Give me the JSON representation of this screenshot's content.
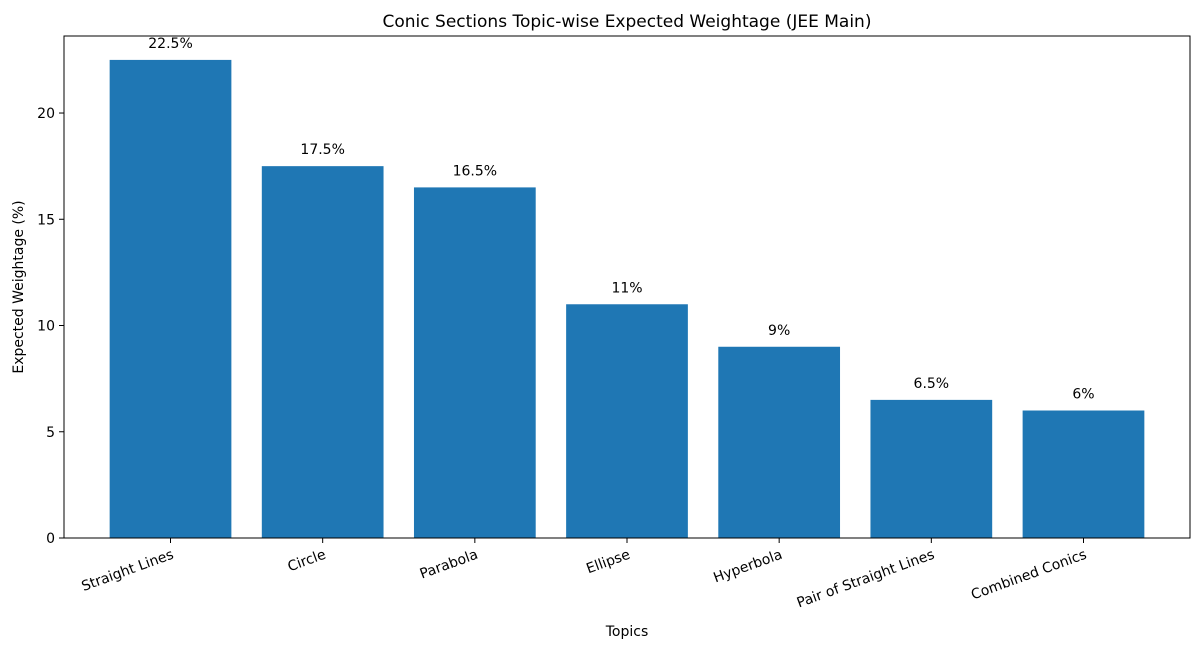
{
  "chart_data": {
    "type": "bar",
    "title": "Conic Sections Topic-wise Expected Weightage (JEE Main)",
    "xlabel": "Topics",
    "ylabel": "Expected Weightage (%)",
    "categories": [
      "Straight Lines",
      "Circle",
      "Parabola",
      "Ellipse",
      "Hyperbola",
      "Pair of Straight Lines",
      "Combined Conics"
    ],
    "values": [
      22.5,
      17.5,
      16.5,
      11,
      9,
      6.5,
      6
    ],
    "data_labels": [
      "22.5%",
      "17.5%",
      "16.5%",
      "11%",
      "9%",
      "6.5%",
      "6%"
    ],
    "yticks": [
      0,
      5,
      10,
      15,
      20
    ],
    "ylim": [
      0,
      23.625
    ],
    "grid": false,
    "legend": null,
    "bar_color": "#1f77b4",
    "xtick_rotation": -20
  }
}
